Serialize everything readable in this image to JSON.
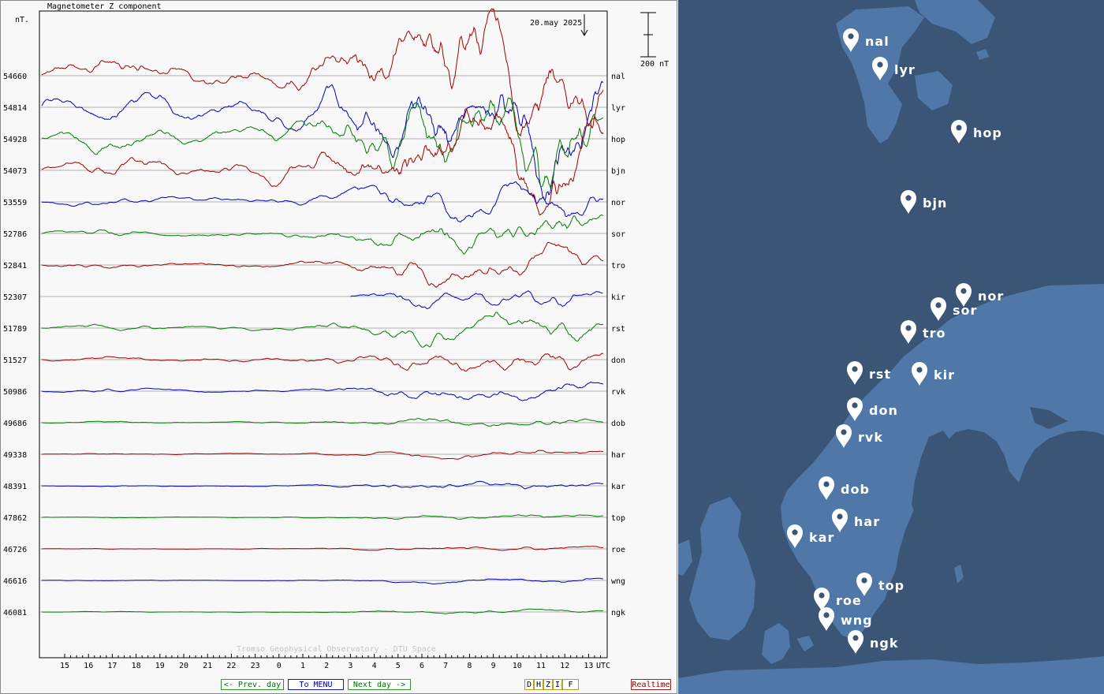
{
  "plot": {
    "title": "Magnetometer Z component",
    "unit_label": "nT.",
    "date_label": "20.may 2025",
    "scale_label": "200 nT",
    "watermark": "Tromso Geophysical Observatory - DTU Space",
    "utc_label": "UTC"
  },
  "buttons": {
    "prev": "<- Prev. day",
    "menu": "To MENU",
    "next": "Next day ->",
    "components": [
      "D",
      "H",
      "Z",
      "I",
      "F"
    ],
    "realtime": "Realtime"
  },
  "colors": {
    "red": "#a00000",
    "blue": "#0000b8",
    "green": "#007a00",
    "map_land": "#4f77a8",
    "map_sea": "#3a5575"
  },
  "chart_data": {
    "type": "line",
    "title": "Magnetometer Z component",
    "xlabel": "UTC",
    "ylabel": "nT.",
    "x_ticks": [
      "15",
      "16",
      "17",
      "18",
      "19",
      "20",
      "21",
      "22",
      "23",
      "0",
      "1",
      "2",
      "3",
      "4",
      "5",
      "6",
      "7",
      "8",
      "9",
      "10",
      "11",
      "12",
      "13"
    ],
    "scale_bar_nT": 200,
    "grid": true,
    "series": [
      {
        "name": "nal",
        "baseline": 54660,
        "color": "red",
        "activity": 1.0
      },
      {
        "name": "lyr",
        "baseline": 54814,
        "color": "blue",
        "activity": 0.95
      },
      {
        "name": "hop",
        "baseline": 54928,
        "color": "green",
        "activity": 0.85
      },
      {
        "name": "bjn",
        "baseline": 54073,
        "color": "red",
        "activity": 0.8
      },
      {
        "name": "nor",
        "baseline": 53559,
        "color": "blue",
        "activity": 0.55
      },
      {
        "name": "sor",
        "baseline": 52786,
        "color": "green",
        "activity": 0.5
      },
      {
        "name": "tro",
        "baseline": 52841,
        "color": "red",
        "activity": 0.45
      },
      {
        "name": "kir",
        "baseline": 52307,
        "color": "blue",
        "activity": 0.3,
        "start_hour": 3
      },
      {
        "name": "rst",
        "baseline": 51789,
        "color": "green",
        "activity": 0.4
      },
      {
        "name": "don",
        "baseline": 51527,
        "color": "red",
        "activity": 0.33
      },
      {
        "name": "rvk",
        "baseline": 50986,
        "color": "blue",
        "activity": 0.28
      },
      {
        "name": "dob",
        "baseline": 49686,
        "color": "green",
        "activity": 0.14
      },
      {
        "name": "har",
        "baseline": 49338,
        "color": "red",
        "activity": 0.1
      },
      {
        "name": "kar",
        "baseline": 48391,
        "color": "blue",
        "activity": 0.12
      },
      {
        "name": "top",
        "baseline": 47862,
        "color": "green",
        "activity": 0.08
      },
      {
        "name": "roe",
        "baseline": 46726,
        "color": "red",
        "activity": 0.07
      },
      {
        "name": "wng",
        "baseline": 46616,
        "color": "blue",
        "activity": 0.06
      },
      {
        "name": "ngk",
        "baseline": 46081,
        "color": "green",
        "activity": 0.05
      }
    ]
  },
  "map": {
    "markers": [
      {
        "name": "nal"
      },
      {
        "name": "lyr"
      },
      {
        "name": "hop"
      },
      {
        "name": "bjn"
      },
      {
        "name": "nor"
      },
      {
        "name": "sor"
      },
      {
        "name": "tro"
      },
      {
        "name": "rst"
      },
      {
        "name": "kir"
      },
      {
        "name": "don"
      },
      {
        "name": "rvk"
      },
      {
        "name": "dob"
      },
      {
        "name": "har"
      },
      {
        "name": "kar"
      },
      {
        "name": "top"
      },
      {
        "name": "roe"
      },
      {
        "name": "wng"
      },
      {
        "name": "ngk"
      }
    ]
  }
}
